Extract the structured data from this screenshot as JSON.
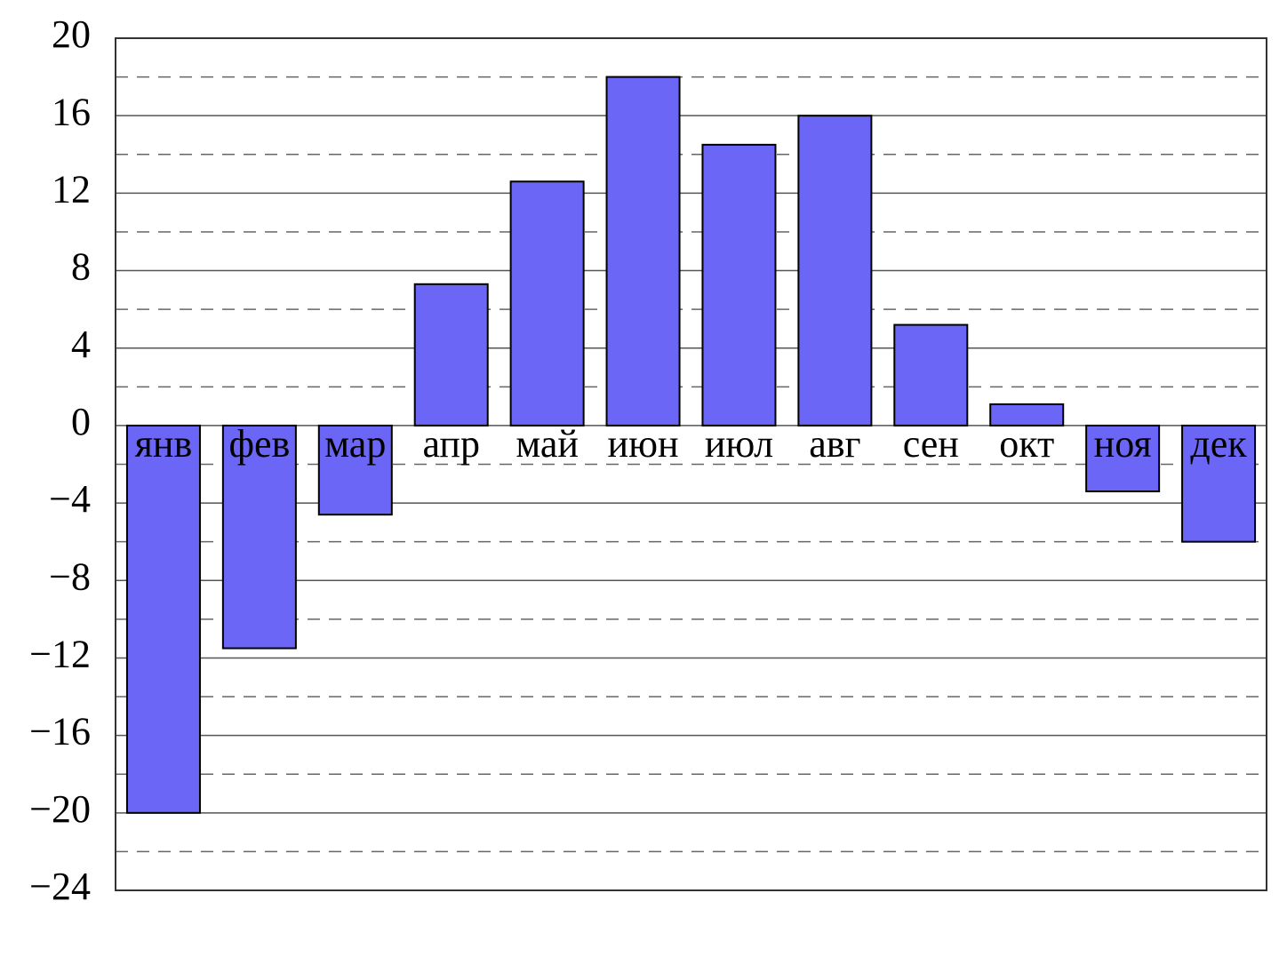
{
  "chart_data": {
    "type": "bar",
    "categories": [
      "янв",
      "фев",
      "мар",
      "апр",
      "май",
      "июн",
      "июл",
      "авг",
      "сен",
      "окт",
      "ноя",
      "дек"
    ],
    "values": [
      -20,
      -11.5,
      -4.6,
      7.3,
      12.6,
      18,
      14.5,
      16,
      5.2,
      1.1,
      -3.4,
      -6
    ],
    "color": "#6b66f5",
    "ylim": [
      -24,
      20
    ],
    "yticks": [
      {
        "value": -24,
        "label": "−24"
      },
      {
        "value": -20,
        "label": "−20"
      },
      {
        "value": -16,
        "label": "−16"
      },
      {
        "value": -12,
        "label": "−12"
      },
      {
        "value": -8,
        "label": "−8"
      },
      {
        "value": -4,
        "label": "−4"
      },
      0,
      4,
      8,
      12,
      16,
      20
    ],
    "minor_yticks": [
      -22,
      -18,
      -14,
      -10,
      -6,
      -2,
      2,
      6,
      10,
      14,
      18
    ],
    "grid": true
  }
}
